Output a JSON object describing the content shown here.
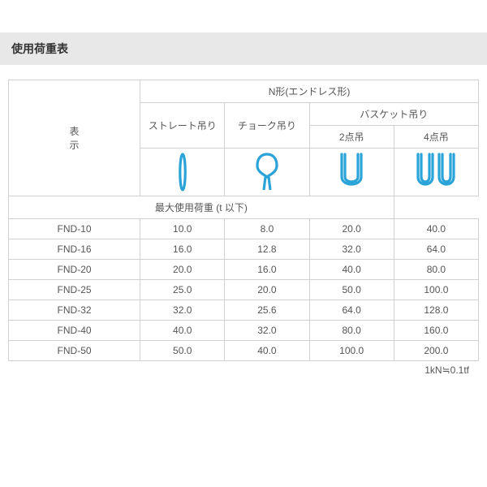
{
  "title": "使用荷重表",
  "table": {
    "row_label_header": "表\n示",
    "group_header": "N形(エンドレス形)",
    "lift_methods": {
      "straight": "ストレート吊り",
      "choke": "チョーク吊り",
      "basket": "バスケット吊り",
      "basket_2pt": "2点吊",
      "basket_4pt": "4点吊"
    },
    "max_load_header": "最大使用荷重 (t 以下)",
    "icon_stroke": "#2aa3d8",
    "icon_stroke_width": 3.2,
    "rows": [
      {
        "label": "FND-10",
        "straight": "10.0",
        "choke": "8.0",
        "b2": "20.0",
        "b4": "40.0"
      },
      {
        "label": "FND-16",
        "straight": "16.0",
        "choke": "12.8",
        "b2": "32.0",
        "b4": "64.0"
      },
      {
        "label": "FND-20",
        "straight": "20.0",
        "choke": "16.0",
        "b2": "40.0",
        "b4": "80.0"
      },
      {
        "label": "FND-25",
        "straight": "25.0",
        "choke": "20.0",
        "b2": "50.0",
        "b4": "100.0"
      },
      {
        "label": "FND-32",
        "straight": "32.0",
        "choke": "25.6",
        "b2": "64.0",
        "b4": "128.0"
      },
      {
        "label": "FND-40",
        "straight": "40.0",
        "choke": "32.0",
        "b2": "80.0",
        "b4": "160.0"
      },
      {
        "label": "FND-50",
        "straight": "50.0",
        "choke": "40.0",
        "b2": "100.0",
        "b4": "200.0"
      }
    ]
  },
  "footnote": "1kN≒0.1tf"
}
